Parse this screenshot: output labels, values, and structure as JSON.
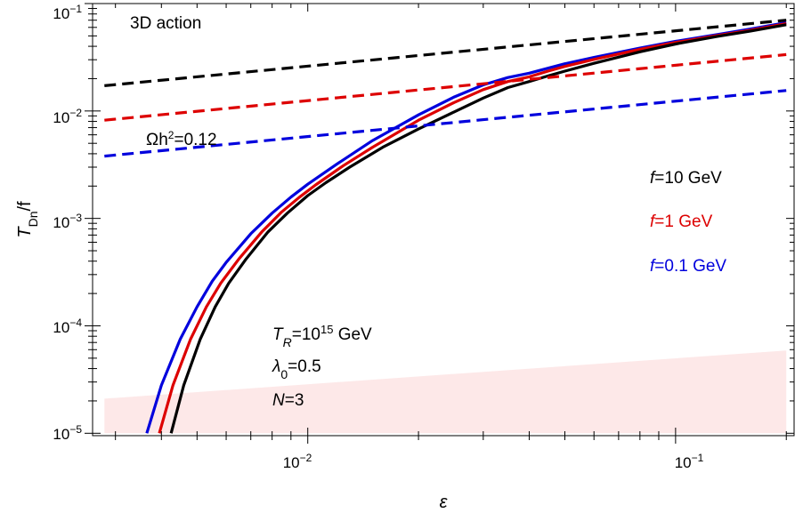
{
  "chart_data": {
    "type": "line",
    "title": "",
    "xlabel": "ε",
    "ylabel_main": "T",
    "ylabel_sub": "Dn",
    "ylabel_tail": "/f",
    "x_scale": "log",
    "y_scale": "log",
    "xlim": [
      0.0026,
      0.21
    ],
    "ylim": [
      9.5e-06,
      0.1
    ],
    "grid": false,
    "x_ticks": [
      {
        "value": 0.01,
        "base": "10",
        "exp": "−2"
      },
      {
        "value": 0.1,
        "base": "10",
        "exp": "−1"
      }
    ],
    "y_ticks": [
      {
        "value": 0.1,
        "base": "10",
        "exp": "−1"
      },
      {
        "value": 0.01,
        "base": "10",
        "exp": "−2"
      },
      {
        "value": 0.001,
        "base": "10",
        "exp": "−3"
      },
      {
        "value": 0.0001,
        "base": "10",
        "exp": "−4"
      },
      {
        "value": 1e-05,
        "base": "10",
        "exp": "−5"
      }
    ],
    "series": [
      {
        "color": "#0000dd",
        "style": "solid",
        "x": [
          0.00365,
          0.004,
          0.0045,
          0.005,
          0.0055,
          0.006,
          0.007,
          0.008,
          0.009,
          0.01,
          0.012,
          0.015,
          0.02,
          0.025,
          0.03,
          0.035,
          0.04,
          0.045,
          0.05,
          0.06,
          0.08,
          0.1,
          0.13,
          0.16,
          0.2
        ],
        "y": [
          1e-05,
          2.8e-05,
          7.5e-05,
          0.00015,
          0.00026,
          0.00039,
          0.00072,
          0.00112,
          0.00158,
          0.00208,
          0.0032,
          0.0053,
          0.0092,
          0.0135,
          0.0175,
          0.0205,
          0.0225,
          0.025,
          0.0275,
          0.0315,
          0.0385,
          0.0445,
          0.0515,
          0.058,
          0.0665
        ]
      },
      {
        "color": "#dd0000",
        "style": "solid",
        "x": [
          0.00395,
          0.0043,
          0.0048,
          0.0053,
          0.0058,
          0.0065,
          0.0075,
          0.0085,
          0.0095,
          0.0105,
          0.0125,
          0.015,
          0.02,
          0.025,
          0.03,
          0.035,
          0.04,
          0.045,
          0.05,
          0.06,
          0.08,
          0.1,
          0.13,
          0.16,
          0.2
        ],
        "y": [
          1e-05,
          2.8e-05,
          7.5e-05,
          0.00015,
          0.00025,
          0.00042,
          0.00075,
          0.00115,
          0.00158,
          0.00205,
          0.0031,
          0.0046,
          0.0082,
          0.012,
          0.0158,
          0.0188,
          0.0208,
          0.0235,
          0.026,
          0.0302,
          0.0375,
          0.0435,
          0.0505,
          0.0565,
          0.065
        ]
      },
      {
        "color": "#000000",
        "style": "solid",
        "x": [
          0.00425,
          0.0046,
          0.0051,
          0.0056,
          0.0061,
          0.0068,
          0.0078,
          0.0088,
          0.01,
          0.0112,
          0.013,
          0.016,
          0.02,
          0.025,
          0.03,
          0.035,
          0.04,
          0.045,
          0.05,
          0.06,
          0.08,
          0.1,
          0.13,
          0.16,
          0.2
        ],
        "y": [
          1e-05,
          2.8e-05,
          7.5e-05,
          0.00015,
          0.00025,
          0.00042,
          0.00075,
          0.00112,
          0.00163,
          0.00215,
          0.003,
          0.0046,
          0.0068,
          0.0098,
          0.0132,
          0.0165,
          0.0188,
          0.0212,
          0.0235,
          0.0278,
          0.0355,
          0.042,
          0.0495,
          0.0555,
          0.0635
        ]
      },
      {
        "color": "#000000",
        "style": "dashed",
        "x": [
          0.0028,
          0.2
        ],
        "y": [
          0.0172,
          0.07
        ]
      },
      {
        "color": "#dd0000",
        "style": "dashed",
        "x": [
          0.0028,
          0.2
        ],
        "y": [
          0.0082,
          0.0335
        ]
      },
      {
        "color": "#0000dd",
        "style": "dashed",
        "x": [
          0.0028,
          0.2
        ],
        "y": [
          0.0038,
          0.0155
        ]
      }
    ],
    "shaded_region": {
      "color": "#fde8e8",
      "x": [
        0.0028,
        0.2
      ],
      "y_bottom": [
        1e-05,
        1e-05
      ],
      "y_top": [
        2.1e-05,
        5.9e-05
      ]
    },
    "annotations": {
      "action": "3D action",
      "relic_omega": "Ωh",
      "relic_exp": "2",
      "relic_tail": "=0.12",
      "legend": [
        {
          "f": "f",
          "rest": "=10 GeV",
          "color": "#000000"
        },
        {
          "f": "f",
          "rest": "=1 GeV",
          "color": "#dd0000"
        },
        {
          "f": "f",
          "rest": "=0.1 GeV",
          "color": "#0000dd"
        }
      ],
      "params": {
        "tr_T": "T",
        "tr_sub": "R",
        "tr_mid": "=10",
        "tr_exp": "15",
        "tr_tail": " GeV",
        "lam": "λ",
        "lam_sub": "0",
        "lam_tail": "=0.5",
        "n": "N",
        "n_tail": "=3"
      }
    }
  }
}
